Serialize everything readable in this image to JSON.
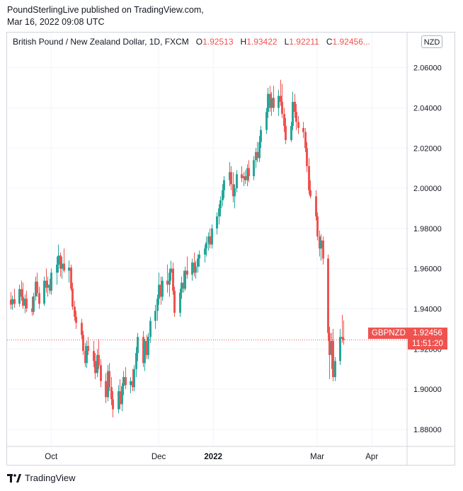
{
  "publisher": {
    "line1": "PoundSterlingLive published on TradingView.com,",
    "line2": "Mar 16, 2022 09:08 UTC"
  },
  "legend": {
    "symbol": "British Pound / New Zealand Dollar, 1D, FXCM",
    "o_label": "O",
    "o_value": "1.92513",
    "h_label": "H",
    "h_value": "1.93422",
    "l_label": "L",
    "l_value": "1.92211",
    "c_label": "C",
    "c_value": "1.92456...",
    "currency": "NZD"
  },
  "price_tag": {
    "symbol": "GBPNZD",
    "price": "1.92456",
    "countdown": "11:51:20"
  },
  "footer": {
    "brand": "TradingView"
  },
  "colors": {
    "up": "#26a69a",
    "down": "#ef5350",
    "grid": "#f0f3fa",
    "axis_text": "#131722"
  },
  "chart_data": {
    "type": "candlestick",
    "y_ticks": [
      "2.06000",
      "2.04000",
      "2.02000",
      "2.00000",
      "1.98000",
      "1.96000",
      "1.94000",
      "1.92000",
      "1.90000",
      "1.88000"
    ],
    "x_ticks": [
      {
        "label": "Oct",
        "date": "2021-10-01"
      },
      {
        "label": "Dec",
        "date": "2021-12-01"
      },
      {
        "label": "2022",
        "date": "2022-01-01",
        "bold": true
      },
      {
        "label": "Mar",
        "date": "2022-03-01"
      },
      {
        "label": "Apr",
        "date": "2022-04-01"
      }
    ],
    "ylim": [
      1.8715,
      2.0775
    ],
    "xlim": [
      "2021-09-06",
      "2022-04-21"
    ],
    "last_price": 1.92456,
    "candles": [
      {
        "d": "2021-09-08",
        "o": 1.9445,
        "h": 1.9482,
        "l": 1.9398,
        "c": 1.9421
      },
      {
        "d": "2021-09-09",
        "o": 1.9421,
        "h": 1.9466,
        "l": 1.9395,
        "c": 1.9448
      },
      {
        "d": "2021-09-10",
        "o": 1.9448,
        "h": 1.95,
        "l": 1.9405,
        "c": 1.9425
      },
      {
        "d": "2021-09-13",
        "o": 1.9425,
        "h": 1.952,
        "l": 1.941,
        "c": 1.9498
      },
      {
        "d": "2021-09-14",
        "o": 1.9498,
        "h": 1.954,
        "l": 1.944,
        "c": 1.946
      },
      {
        "d": "2021-09-15",
        "o": 1.946,
        "h": 1.953,
        "l": 1.94,
        "c": 1.9415
      },
      {
        "d": "2021-09-16",
        "o": 1.9415,
        "h": 1.9472,
        "l": 1.9378,
        "c": 1.945
      },
      {
        "d": "2021-09-17",
        "o": 1.945,
        "h": 1.949,
        "l": 1.9385,
        "c": 1.9402
      },
      {
        "d": "2021-09-20",
        "o": 1.9402,
        "h": 1.946,
        "l": 1.9365,
        "c": 1.9385
      },
      {
        "d": "2021-09-21",
        "o": 1.9385,
        "h": 1.948,
        "l": 1.937,
        "c": 1.9462
      },
      {
        "d": "2021-09-22",
        "o": 1.9462,
        "h": 1.956,
        "l": 1.944,
        "c": 1.9535
      },
      {
        "d": "2021-09-23",
        "o": 1.9535,
        "h": 1.958,
        "l": 1.946,
        "c": 1.9478
      },
      {
        "d": "2021-09-24",
        "o": 1.9478,
        "h": 1.951,
        "l": 1.94,
        "c": 1.9425
      },
      {
        "d": "2021-09-27",
        "o": 1.9425,
        "h": 1.956,
        "l": 1.9415,
        "c": 1.954
      },
      {
        "d": "2021-09-28",
        "o": 1.954,
        "h": 1.96,
        "l": 1.948,
        "c": 1.9505
      },
      {
        "d": "2021-09-29",
        "o": 1.9505,
        "h": 1.956,
        "l": 1.946,
        "c": 1.952
      },
      {
        "d": "2021-09-30",
        "o": 1.952,
        "h": 1.955,
        "l": 1.9475,
        "c": 1.949
      },
      {
        "d": "2021-10-01",
        "o": 1.949,
        "h": 1.96,
        "l": 1.947,
        "c": 1.958
      },
      {
        "d": "2021-10-04",
        "o": 1.958,
        "h": 1.966,
        "l": 1.952,
        "c": 1.962
      },
      {
        "d": "2021-10-05",
        "o": 1.962,
        "h": 1.972,
        "l": 1.958,
        "c": 1.9665
      },
      {
        "d": "2021-10-06",
        "o": 1.9665,
        "h": 1.968,
        "l": 1.956,
        "c": 1.96
      },
      {
        "d": "2021-10-07",
        "o": 1.96,
        "h": 1.966,
        "l": 1.955,
        "c": 1.9625
      },
      {
        "d": "2021-10-08",
        "o": 1.9625,
        "h": 1.97,
        "l": 1.958,
        "c": 1.959
      },
      {
        "d": "2021-10-11",
        "o": 1.959,
        "h": 1.964,
        "l": 1.953,
        "c": 1.9605
      },
      {
        "d": "2021-10-12",
        "o": 1.9605,
        "h": 1.962,
        "l": 1.949,
        "c": 1.95
      },
      {
        "d": "2021-10-13",
        "o": 1.95,
        "h": 1.953,
        "l": 1.9395,
        "c": 1.941
      },
      {
        "d": "2021-10-14",
        "o": 1.941,
        "h": 1.944,
        "l": 1.934,
        "c": 1.936
      },
      {
        "d": "2021-10-15",
        "o": 1.936,
        "h": 1.939,
        "l": 1.93,
        "c": 1.933
      },
      {
        "d": "2021-10-18",
        "o": 1.933,
        "h": 1.935,
        "l": 1.925,
        "c": 1.927
      },
      {
        "d": "2021-10-19",
        "o": 1.927,
        "h": 1.929,
        "l": 1.917,
        "c": 1.919
      },
      {
        "d": "2021-10-20",
        "o": 1.919,
        "h": 1.923,
        "l": 1.911,
        "c": 1.913
      },
      {
        "d": "2021-10-21",
        "o": 1.913,
        "h": 1.924,
        "l": 1.9105,
        "c": 1.9215
      },
      {
        "d": "2021-10-22",
        "o": 1.9215,
        "h": 1.926,
        "l": 1.917,
        "c": 1.919
      },
      {
        "d": "2021-10-25",
        "o": 1.919,
        "h": 1.924,
        "l": 1.911,
        "c": 1.914
      },
      {
        "d": "2021-10-26",
        "o": 1.914,
        "h": 1.918,
        "l": 1.905,
        "c": 1.908
      },
      {
        "d": "2021-10-27",
        "o": 1.908,
        "h": 1.92,
        "l": 1.906,
        "c": 1.917
      },
      {
        "d": "2021-10-28",
        "o": 1.917,
        "h": 1.925,
        "l": 1.91,
        "c": 1.912
      },
      {
        "d": "2021-10-29",
        "o": 1.912,
        "h": 1.915,
        "l": 1.901,
        "c": 1.904
      },
      {
        "d": "2021-11-01",
        "o": 1.904,
        "h": 1.908,
        "l": 1.893,
        "c": 1.896
      },
      {
        "d": "2021-11-02",
        "o": 1.896,
        "h": 1.912,
        "l": 1.894,
        "c": 1.909
      },
      {
        "d": "2021-11-03",
        "o": 1.909,
        "h": 1.913,
        "l": 1.899,
        "c": 1.901
      },
      {
        "d": "2021-11-04",
        "o": 1.901,
        "h": 1.906,
        "l": 1.892,
        "c": 1.895
      },
      {
        "d": "2021-11-05",
        "o": 1.895,
        "h": 1.899,
        "l": 1.886,
        "c": 1.89
      },
      {
        "d": "2021-11-08",
        "o": 1.89,
        "h": 1.902,
        "l": 1.888,
        "c": 1.899
      },
      {
        "d": "2021-11-09",
        "o": 1.899,
        "h": 1.905,
        "l": 1.89,
        "c": 1.8925
      },
      {
        "d": "2021-11-10",
        "o": 1.8925,
        "h": 1.903,
        "l": 1.889,
        "c": 1.9015
      },
      {
        "d": "2021-11-11",
        "o": 1.9015,
        "h": 1.909,
        "l": 1.897,
        "c": 1.906
      },
      {
        "d": "2021-11-12",
        "o": 1.906,
        "h": 1.911,
        "l": 1.9,
        "c": 1.902
      },
      {
        "d": "2021-11-15",
        "o": 1.902,
        "h": 1.906,
        "l": 1.898,
        "c": 1.904
      },
      {
        "d": "2021-11-16",
        "o": 1.904,
        "h": 1.91,
        "l": 1.899,
        "c": 1.901
      },
      {
        "d": "2021-11-17",
        "o": 1.901,
        "h": 1.912,
        "l": 1.899,
        "c": 1.91
      },
      {
        "d": "2021-11-18",
        "o": 1.91,
        "h": 1.921,
        "l": 1.906,
        "c": 1.918
      },
      {
        "d": "2021-11-19",
        "o": 1.918,
        "h": 1.928,
        "l": 1.914,
        "c": 1.926
      },
      {
        "d": "2021-11-22",
        "o": 1.926,
        "h": 1.929,
        "l": 1.911,
        "c": 1.913
      },
      {
        "d": "2021-11-23",
        "o": 1.913,
        "h": 1.925,
        "l": 1.909,
        "c": 1.924
      },
      {
        "d": "2021-11-24",
        "o": 1.924,
        "h": 1.927,
        "l": 1.915,
        "c": 1.917
      },
      {
        "d": "2021-11-25",
        "o": 1.917,
        "h": 1.928,
        "l": 1.915,
        "c": 1.926
      },
      {
        "d": "2021-11-26",
        "o": 1.926,
        "h": 1.936,
        "l": 1.923,
        "c": 1.934
      },
      {
        "d": "2021-11-29",
        "o": 1.934,
        "h": 1.942,
        "l": 1.93,
        "c": 1.939
      },
      {
        "d": "2021-11-30",
        "o": 1.939,
        "h": 1.947,
        "l": 1.934,
        "c": 1.945
      },
      {
        "d": "2021-12-01",
        "o": 1.945,
        "h": 1.958,
        "l": 1.942,
        "c": 1.952
      },
      {
        "d": "2021-12-02",
        "o": 1.952,
        "h": 1.956,
        "l": 1.942,
        "c": 1.946
      },
      {
        "d": "2021-12-03",
        "o": 1.946,
        "h": 1.956,
        "l": 1.944,
        "c": 1.954
      },
      {
        "d": "2021-12-06",
        "o": 1.954,
        "h": 1.962,
        "l": 1.948,
        "c": 1.952
      },
      {
        "d": "2021-12-07",
        "o": 1.952,
        "h": 1.96,
        "l": 1.946,
        "c": 1.958
      },
      {
        "d": "2021-12-08",
        "o": 1.958,
        "h": 1.964,
        "l": 1.954,
        "c": 1.96
      },
      {
        "d": "2021-12-09",
        "o": 1.96,
        "h": 1.963,
        "l": 1.947,
        "c": 1.949
      },
      {
        "d": "2021-12-10",
        "o": 1.949,
        "h": 1.951,
        "l": 1.936,
        "c": 1.938
      },
      {
        "d": "2021-12-13",
        "o": 1.938,
        "h": 1.95,
        "l": 1.936,
        "c": 1.948
      },
      {
        "d": "2021-12-14",
        "o": 1.948,
        "h": 1.956,
        "l": 1.945,
        "c": 1.953
      },
      {
        "d": "2021-12-15",
        "o": 1.953,
        "h": 1.959,
        "l": 1.948,
        "c": 1.95
      },
      {
        "d": "2021-12-16",
        "o": 1.95,
        "h": 1.961,
        "l": 1.949,
        "c": 1.959
      },
      {
        "d": "2021-12-17",
        "o": 1.959,
        "h": 1.966,
        "l": 1.955,
        "c": 1.957
      },
      {
        "d": "2021-12-20",
        "o": 1.957,
        "h": 1.965,
        "l": 1.954,
        "c": 1.963
      },
      {
        "d": "2021-12-21",
        "o": 1.963,
        "h": 1.968,
        "l": 1.956,
        "c": 1.958
      },
      {
        "d": "2021-12-22",
        "o": 1.958,
        "h": 1.964,
        "l": 1.955,
        "c": 1.961
      },
      {
        "d": "2021-12-23",
        "o": 1.961,
        "h": 1.967,
        "l": 1.958,
        "c": 1.965
      },
      {
        "d": "2021-12-24",
        "o": 1.965,
        "h": 1.969,
        "l": 1.961,
        "c": 1.967
      },
      {
        "d": "2021-12-27",
        "o": 1.967,
        "h": 1.972,
        "l": 1.963,
        "c": 1.97
      },
      {
        "d": "2021-12-28",
        "o": 1.97,
        "h": 1.976,
        "l": 1.966,
        "c": 1.973
      },
      {
        "d": "2021-12-29",
        "o": 1.973,
        "h": 1.978,
        "l": 1.969,
        "c": 1.976
      },
      {
        "d": "2021-12-30",
        "o": 1.976,
        "h": 1.98,
        "l": 1.97,
        "c": 1.972
      },
      {
        "d": "2021-12-31",
        "o": 1.972,
        "h": 1.982,
        "l": 1.97,
        "c": 1.98
      },
      {
        "d": "2022-01-03",
        "o": 1.98,
        "h": 1.988,
        "l": 1.977,
        "c": 1.986
      },
      {
        "d": "2022-01-04",
        "o": 1.986,
        "h": 1.992,
        "l": 1.982,
        "c": 1.99
      },
      {
        "d": "2022-01-05",
        "o": 1.99,
        "h": 1.996,
        "l": 1.986,
        "c": 1.994
      },
      {
        "d": "2022-01-06",
        "o": 1.994,
        "h": 2.002,
        "l": 1.991,
        "c": 1.999
      },
      {
        "d": "2022-01-07",
        "o": 1.999,
        "h": 2.006,
        "l": 1.995,
        "c": 2.004
      },
      {
        "d": "2022-01-10",
        "o": 2.004,
        "h": 2.013,
        "l": 2.001,
        "c": 2.008
      },
      {
        "d": "2022-01-11",
        "o": 2.008,
        "h": 2.011,
        "l": 1.999,
        "c": 2.002
      },
      {
        "d": "2022-01-12",
        "o": 2.002,
        "h": 2.008,
        "l": 1.993,
        "c": 1.996
      },
      {
        "d": "2022-01-13",
        "o": 1.996,
        "h": 2.002,
        "l": 1.99,
        "c": 2.0
      },
      {
        "d": "2022-01-14",
        "o": 2.0,
        "h": 2.009,
        "l": 1.998,
        "c": 2.007
      },
      {
        "d": "2022-01-17",
        "o": 2.007,
        "h": 2.011,
        "l": 2.003,
        "c": 2.005
      },
      {
        "d": "2022-01-18",
        "o": 2.005,
        "h": 2.008,
        "l": 2.001,
        "c": 2.006
      },
      {
        "d": "2022-01-19",
        "o": 2.006,
        "h": 2.009,
        "l": 2.002,
        "c": 2.004
      },
      {
        "d": "2022-01-20",
        "o": 2.004,
        "h": 2.012,
        "l": 2.001,
        "c": 2.01
      },
      {
        "d": "2022-01-21",
        "o": 2.01,
        "h": 2.014,
        "l": 2.003,
        "c": 2.006
      },
      {
        "d": "2022-01-24",
        "o": 2.006,
        "h": 2.016,
        "l": 2.004,
        "c": 2.014
      },
      {
        "d": "2022-01-25",
        "o": 2.014,
        "h": 2.02,
        "l": 2.01,
        "c": 2.018
      },
      {
        "d": "2022-01-26",
        "o": 2.018,
        "h": 2.023,
        "l": 2.013,
        "c": 2.015
      },
      {
        "d": "2022-01-27",
        "o": 2.015,
        "h": 2.026,
        "l": 2.013,
        "c": 2.023
      },
      {
        "d": "2022-01-28",
        "o": 2.023,
        "h": 2.031,
        "l": 2.02,
        "c": 2.029
      },
      {
        "d": "2022-01-31",
        "o": 2.029,
        "h": 2.04,
        "l": 2.027,
        "c": 2.038
      },
      {
        "d": "2022-02-01",
        "o": 2.038,
        "h": 2.05,
        "l": 2.035,
        "c": 2.047
      },
      {
        "d": "2022-02-02",
        "o": 2.047,
        "h": 2.051,
        "l": 2.038,
        "c": 2.04
      },
      {
        "d": "2022-02-03",
        "o": 2.04,
        "h": 2.048,
        "l": 2.036,
        "c": 2.045
      },
      {
        "d": "2022-02-04",
        "o": 2.045,
        "h": 2.051,
        "l": 2.038,
        "c": 2.04
      },
      {
        "d": "2022-02-07",
        "o": 2.04,
        "h": 2.049,
        "l": 2.036,
        "c": 2.046
      },
      {
        "d": "2022-02-08",
        "o": 2.046,
        "h": 2.054,
        "l": 2.041,
        "c": 2.043
      },
      {
        "d": "2022-02-09",
        "o": 2.043,
        "h": 2.052,
        "l": 2.035,
        "c": 2.037
      },
      {
        "d": "2022-02-10",
        "o": 2.037,
        "h": 2.04,
        "l": 2.028,
        "c": 2.031
      },
      {
        "d": "2022-02-11",
        "o": 2.031,
        "h": 2.035,
        "l": 2.022,
        "c": 2.024
      },
      {
        "d": "2022-02-14",
        "o": 2.024,
        "h": 2.033,
        "l": 2.023,
        "c": 2.031
      },
      {
        "d": "2022-02-15",
        "o": 2.031,
        "h": 2.048,
        "l": 2.029,
        "c": 2.043
      },
      {
        "d": "2022-02-16",
        "o": 2.043,
        "h": 2.047,
        "l": 2.035,
        "c": 2.038
      },
      {
        "d": "2022-02-17",
        "o": 2.038,
        "h": 2.042,
        "l": 2.029,
        "c": 2.033
      },
      {
        "d": "2022-02-18",
        "o": 2.033,
        "h": 2.036,
        "l": 2.027,
        "c": 2.03
      },
      {
        "d": "2022-02-21",
        "o": 2.03,
        "h": 2.033,
        "l": 2.025,
        "c": 2.028
      },
      {
        "d": "2022-02-22",
        "o": 2.028,
        "h": 2.03,
        "l": 2.018,
        "c": 2.02
      },
      {
        "d": "2022-02-23",
        "o": 2.02,
        "h": 2.023,
        "l": 2.008,
        "c": 2.011
      },
      {
        "d": "2022-02-24",
        "o": 2.011,
        "h": 2.015,
        "l": 1.997,
        "c": 1.999
      },
      {
        "d": "2022-02-25",
        "o": 1.999,
        "h": 2.004,
        "l": 1.995,
        "c": 1.996
      },
      {
        "d": "2022-02-28",
        "o": 1.996,
        "h": 1.999,
        "l": 1.984,
        "c": 1.986
      },
      {
        "d": "2022-03-01",
        "o": 1.986,
        "h": 1.988,
        "l": 1.974,
        "c": 1.976
      },
      {
        "d": "2022-03-02",
        "o": 1.976,
        "h": 1.979,
        "l": 1.966,
        "c": 1.97
      },
      {
        "d": "2022-03-03",
        "o": 1.97,
        "h": 1.977,
        "l": 1.964,
        "c": 1.974
      },
      {
        "d": "2022-03-04",
        "o": 1.974,
        "h": 1.976,
        "l": 1.962,
        "c": 1.965
      },
      {
        "d": "2022-03-07",
        "o": 1.965,
        "h": 1.967,
        "l": 1.924,
        "c": 1.928
      },
      {
        "d": "2022-03-08",
        "o": 1.928,
        "h": 1.931,
        "l": 1.905,
        "c": 1.917
      },
      {
        "d": "2022-03-09",
        "o": 1.917,
        "h": 1.928,
        "l": 1.91,
        "c": 1.924
      },
      {
        "d": "2022-03-10",
        "o": 1.924,
        "h": 1.93,
        "l": 1.904,
        "c": 1.906
      },
      {
        "d": "2022-03-11",
        "o": 1.906,
        "h": 1.916,
        "l": 1.904,
        "c": 1.914
      },
      {
        "d": "2022-03-14",
        "o": 1.914,
        "h": 1.93,
        "l": 1.912,
        "c": 1.926
      },
      {
        "d": "2022-03-15",
        "o": 1.926,
        "h": 1.937,
        "l": 1.923,
        "c": 1.9251
      },
      {
        "d": "2022-03-16",
        "o": 1.92513,
        "h": 1.93422,
        "l": 1.92211,
        "c": 1.92456
      }
    ]
  }
}
